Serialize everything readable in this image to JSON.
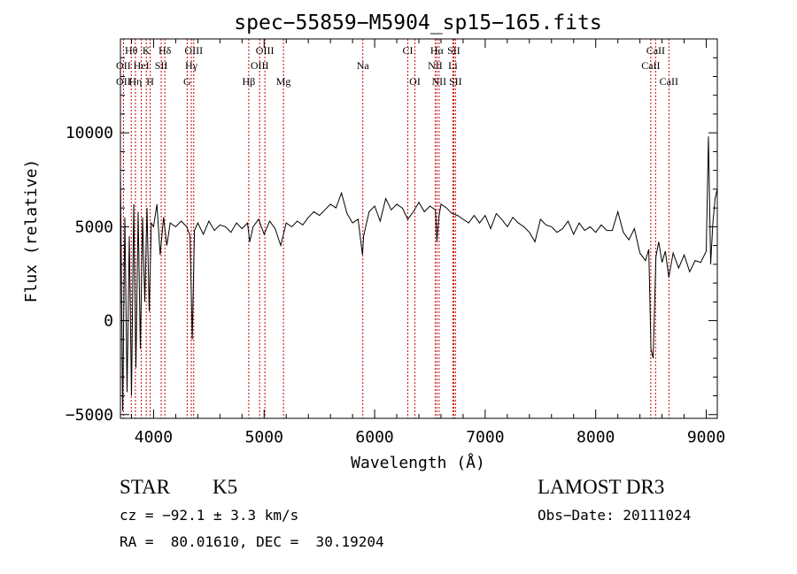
{
  "chart_data": {
    "type": "line",
    "title": "spec−55859−M5904_sp15−165.fits",
    "xlabel": "Wavelength (Å)",
    "ylabel": "Flux (relative)",
    "xlim": [
      3700,
      9100
    ],
    "ylim": [
      -5200,
      15000
    ],
    "x_ticks": [
      4000,
      5000,
      6000,
      7000,
      8000,
      9000
    ],
    "x_tick_labels": [
      "4000",
      "5000",
      "6000",
      "7000",
      "8000",
      "9000"
    ],
    "y_ticks": [
      -5000,
      0,
      5000,
      10000
    ],
    "y_tick_labels": [
      "−5000",
      "0",
      "5000",
      "10000"
    ],
    "series": [
      {
        "name": "flux",
        "x": [
          3700,
          3720,
          3740,
          3760,
          3780,
          3800,
          3820,
          3840,
          3860,
          3880,
          3900,
          3920,
          3940,
          3960,
          3980,
          4000,
          4030,
          4060,
          4090,
          4120,
          4150,
          4200,
          4250,
          4300,
          4330,
          4350,
          4370,
          4400,
          4450,
          4500,
          4550,
          4600,
          4650,
          4700,
          4750,
          4800,
          4850,
          4870,
          4900,
          4950,
          5000,
          5050,
          5100,
          5150,
          5200,
          5250,
          5300,
          5350,
          5400,
          5450,
          5500,
          5550,
          5600,
          5650,
          5700,
          5750,
          5800,
          5850,
          5890,
          5900,
          5950,
          6000,
          6050,
          6100,
          6150,
          6200,
          6250,
          6300,
          6350,
          6400,
          6450,
          6500,
          6550,
          6563,
          6580,
          6600,
          6650,
          6700,
          6750,
          6800,
          6850,
          6900,
          6950,
          7000,
          7050,
          7100,
          7150,
          7200,
          7250,
          7300,
          7350,
          7400,
          7450,
          7500,
          7550,
          7600,
          7650,
          7700,
          7750,
          7800,
          7850,
          7900,
          7950,
          8000,
          8050,
          8100,
          8150,
          8200,
          8250,
          8300,
          8350,
          8400,
          8450,
          8480,
          8500,
          8520,
          8545,
          8570,
          8600,
          8630,
          8662,
          8700,
          8750,
          8800,
          8850,
          8900,
          8950,
          9000,
          9020,
          9040,
          9060,
          9080,
          9100
        ],
        "y": [
          8000,
          -4800,
          5500,
          -3800,
          4500,
          -4000,
          6200,
          -2500,
          5800,
          -1500,
          5500,
          1000,
          6000,
          500,
          5200,
          5000,
          6200,
          3500,
          5500,
          4000,
          5200,
          5000,
          5300,
          5000,
          4500,
          -1000,
          4800,
          5200,
          4600,
          5300,
          4800,
          5100,
          5000,
          4700,
          5200,
          4900,
          5200,
          4200,
          5000,
          5400,
          4600,
          5300,
          4900,
          4000,
          5200,
          5000,
          5300,
          5100,
          5500,
          5800,
          5600,
          5900,
          6200,
          6000,
          6800,
          5700,
          5200,
          5400,
          3500,
          4500,
          5800,
          6100,
          5300,
          6500,
          5900,
          6200,
          6000,
          5400,
          5800,
          6300,
          5800,
          6100,
          5900,
          4200,
          5500,
          6200,
          6000,
          5700,
          5600,
          5400,
          5200,
          5600,
          5200,
          5600,
          4900,
          5700,
          5400,
          5000,
          5500,
          5200,
          5000,
          4700,
          4200,
          5400,
          5100,
          5000,
          4700,
          4900,
          5300,
          4600,
          5200,
          4800,
          5000,
          4700,
          5100,
          4800,
          4800,
          5800,
          4700,
          4300,
          4900,
          3600,
          3200,
          3800,
          -1500,
          -2000,
          3400,
          4200,
          3100,
          3700,
          2300,
          3600,
          2800,
          3500,
          2600,
          3200,
          3100,
          3700,
          9800,
          3000,
          5200,
          6500,
          7000
        ]
      }
    ],
    "line_labels": [
      {
        "label": "Hθ",
        "x": 3798,
        "row": 1
      },
      {
        "label": "K",
        "x": 3934,
        "row": 1
      },
      {
        "label": "Hδ",
        "x": 4102,
        "row": 1
      },
      {
        "label": "OIII",
        "x": 4363,
        "row": 1
      },
      {
        "label": "OIII",
        "x": 5007,
        "row": 1
      },
      {
        "label": "CI",
        "x": 6300,
        "row": 1
      },
      {
        "label": "Hα",
        "x": 6563,
        "row": 1
      },
      {
        "label": "SII",
        "x": 6716,
        "row": 1
      },
      {
        "label": "CaII",
        "x": 8542,
        "row": 1
      },
      {
        "label": "OII",
        "x": 3727,
        "row": 2
      },
      {
        "label": "HeI",
        "x": 3889,
        "row": 2
      },
      {
        "label": "SII",
        "x": 4069,
        "row": 2
      },
      {
        "label": "Hγ",
        "x": 4341,
        "row": 2
      },
      {
        "label": "OIII",
        "x": 4959,
        "row": 2
      },
      {
        "label": "Na",
        "x": 5893,
        "row": 2
      },
      {
        "label": "NII",
        "x": 6548,
        "row": 2
      },
      {
        "label": "Li",
        "x": 6708,
        "row": 2
      },
      {
        "label": "CaII",
        "x": 8498,
        "row": 2
      },
      {
        "label": "OII",
        "x": 3727,
        "row": 3
      },
      {
        "label": "Hη",
        "x": 3835,
        "row": 3
      },
      {
        "label": "H",
        "x": 3969,
        "row": 3
      },
      {
        "label": "G",
        "x": 4304,
        "row": 3
      },
      {
        "label": "Hβ",
        "x": 4861,
        "row": 3
      },
      {
        "label": "Mg",
        "x": 5175,
        "row": 3
      },
      {
        "label": "OI",
        "x": 6364,
        "row": 3
      },
      {
        "label": "NII",
        "x": 6583,
        "row": 3
      },
      {
        "label": "SII",
        "x": 6731,
        "row": 3
      },
      {
        "label": "CaII",
        "x": 8662,
        "row": 3
      }
    ],
    "line_marker_color": "#cc0000"
  },
  "info": {
    "class": "STAR",
    "subclass": "K5",
    "survey": "LAMOST DR3",
    "cz": "cz = −92.1 ± 3.3 km/s",
    "obs_date": "Obs−Date: 20111024",
    "coords": "RA =  80.01610, DEC =  30.19204"
  }
}
